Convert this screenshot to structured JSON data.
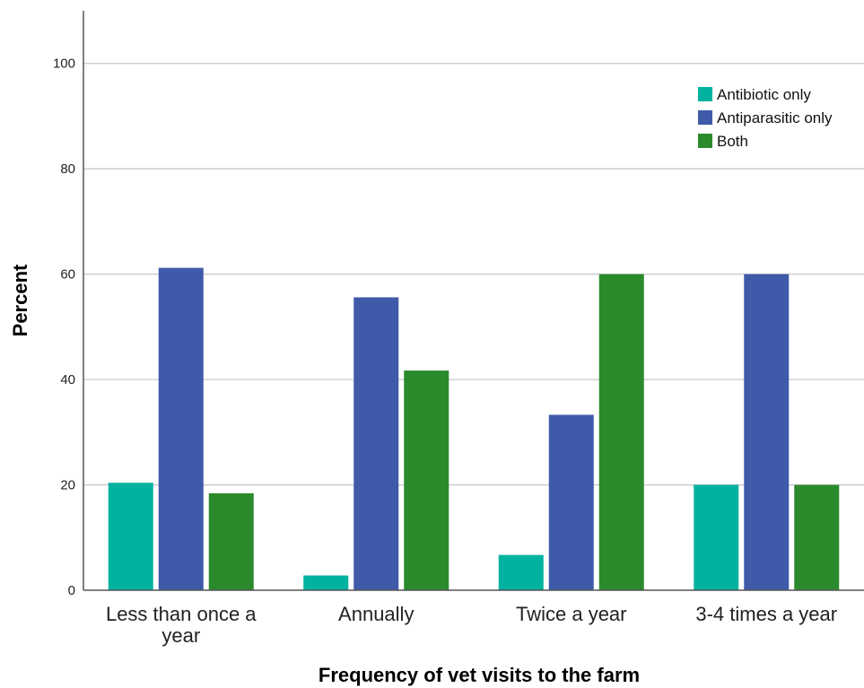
{
  "chart_data": {
    "type": "bar",
    "title": "",
    "xlabel": "Frequency of vet visits to the farm",
    "ylabel": "Percent",
    "ylim": [
      0,
      110
    ],
    "yticks": [
      0,
      20,
      40,
      60,
      80,
      100
    ],
    "grid": true,
    "legend_position": "top-right",
    "categories": [
      "Less than once a year",
      "Annually",
      "Twice a year",
      "3-4 times a year"
    ],
    "series": [
      {
        "name": "Antibiotic only",
        "color": "#00b3a0",
        "values": [
          20.4,
          2.8,
          6.7,
          20.0
        ]
      },
      {
        "name": "Antiparasitic only",
        "color": "#3f5aa9",
        "values": [
          61.2,
          55.6,
          33.3,
          60.0
        ]
      },
      {
        "name": "Both",
        "color": "#2b8a2b",
        "values": [
          18.4,
          41.7,
          60.0,
          20.0
        ]
      }
    ]
  }
}
